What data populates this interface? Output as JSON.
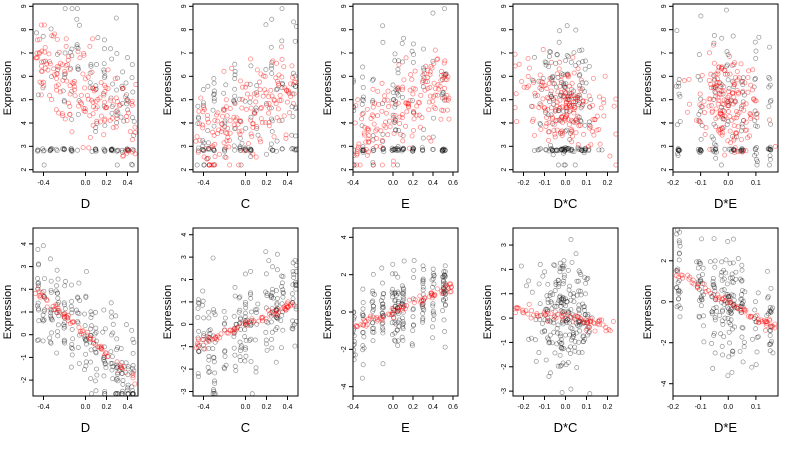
{
  "chart_data": [
    {
      "type": "scatter",
      "xlabel": "D",
      "ylabel": "Expression",
      "xlim": [
        -0.5,
        0.5
      ],
      "ylim": [
        1.9,
        9.1
      ],
      "xticks": [
        "-0.4",
        "0.0",
        "0.2",
        "0.4"
      ],
      "yticks": [
        "2",
        "3",
        "4",
        "5",
        "6",
        "7",
        "8",
        "9"
      ],
      "series": [
        {
          "color": "#000000",
          "pattern": "D-raw"
        },
        {
          "color": "#ff0000",
          "pattern": "D-raw-fit"
        }
      ]
    },
    {
      "type": "scatter",
      "xlabel": "C",
      "ylabel": "Expression",
      "xlim": [
        -0.5,
        0.5
      ],
      "ylim": [
        1.9,
        9.1
      ],
      "xticks": [
        "-0.4",
        "0.0",
        "0.2",
        "0.4"
      ],
      "yticks": [
        "2",
        "3",
        "4",
        "5",
        "6",
        "7",
        "8",
        "9"
      ],
      "series": [
        {
          "color": "#000000",
          "pattern": "C-raw"
        },
        {
          "color": "#ff0000",
          "pattern": "C-raw-fit"
        }
      ]
    },
    {
      "type": "scatter",
      "xlabel": "E",
      "ylabel": "Expression",
      "xlim": [
        -0.4,
        0.65
      ],
      "ylim": [
        1.9,
        9.1
      ],
      "xticks": [
        "-0.4",
        "0.0",
        "0.2",
        "0.4",
        "0.6"
      ],
      "yticks": [
        "2",
        "3",
        "4",
        "5",
        "6",
        "7",
        "8",
        "9"
      ],
      "series": [
        {
          "color": "#000000",
          "pattern": "E-raw"
        },
        {
          "color": "#ff0000",
          "pattern": "E-raw-fit"
        }
      ]
    },
    {
      "type": "scatter",
      "xlabel": "D*C",
      "ylabel": "Expression",
      "xlim": [
        -0.25,
        0.25
      ],
      "ylim": [
        1.9,
        9.1
      ],
      "xticks": [
        "-0.2",
        "-0.1",
        "0.0",
        "0.1",
        "0.2"
      ],
      "yticks": [
        "2",
        "3",
        "4",
        "5",
        "6",
        "7",
        "8",
        "9"
      ],
      "series": [
        {
          "color": "#000000",
          "pattern": "DC-raw"
        },
        {
          "color": "#ff0000",
          "pattern": "DC-raw-fit"
        }
      ]
    },
    {
      "type": "scatter",
      "xlabel": "D*E",
      "ylabel": "Expression",
      "xlim": [
        -0.2,
        0.18
      ],
      "ylim": [
        1.9,
        9.1
      ],
      "xticks": [
        "-0.2",
        "-0.1",
        "0.0",
        "0.1"
      ],
      "yticks": [
        "2",
        "3",
        "4",
        "5",
        "6",
        "7",
        "8",
        "9"
      ],
      "series": [
        {
          "color": "#000000",
          "pattern": "DE-raw"
        },
        {
          "color": "#ff0000",
          "pattern": "DE-raw-fit"
        }
      ]
    },
    {
      "type": "scatter",
      "xlabel": "D",
      "ylabel": "Expression",
      "xlim": [
        -0.5,
        0.5
      ],
      "ylim": [
        -2.7,
        4.7
      ],
      "xticks": [
        "-0.4",
        "0.0",
        "0.2",
        "0.4"
      ],
      "yticks": [
        "-2",
        "-1",
        "0",
        "1",
        "2",
        "3",
        "4"
      ],
      "series": [
        {
          "color": "#000000",
          "pattern": "D-partial"
        },
        {
          "color": "#ff0000",
          "slope": -4.2,
          "intercept": 0
        }
      ]
    },
    {
      "type": "scatter",
      "xlabel": "C",
      "ylabel": "Expression",
      "xlim": [
        -0.5,
        0.5
      ],
      "ylim": [
        -3.2,
        4.3
      ],
      "xticks": [
        "-0.4",
        "0.0",
        "0.2",
        "0.4"
      ],
      "yticks": [
        "-3",
        "-2",
        "-1",
        "0",
        "1",
        "2",
        "3",
        "4"
      ],
      "series": [
        {
          "color": "#000000",
          "pattern": "C-partial"
        },
        {
          "color": "#ff0000",
          "slope": 2.0,
          "intercept": 0
        }
      ]
    },
    {
      "type": "scatter",
      "xlabel": "E",
      "ylabel": "Expression",
      "xlim": [
        -0.4,
        0.65
      ],
      "ylim": [
        -4.5,
        4.5
      ],
      "xticks": [
        "-0.4",
        "0.0",
        "0.2",
        "0.4",
        "0.6"
      ],
      "yticks": [
        "-4",
        "-2",
        "0",
        "2",
        "4"
      ],
      "series": [
        {
          "color": "#000000",
          "pattern": "E-partial"
        },
        {
          "color": "#ff0000",
          "slope": 2.3,
          "intercept": 0
        }
      ]
    },
    {
      "type": "scatter",
      "xlabel": "D*C",
      "ylabel": "Expression",
      "xlim": [
        -0.25,
        0.25
      ],
      "ylim": [
        -3.2,
        3.7
      ],
      "xticks": [
        "-0.2",
        "-0.1",
        "0.0",
        "0.1",
        "0.2"
      ],
      "yticks": [
        "-3",
        "-2",
        "-1",
        "0",
        "1",
        "2",
        "3"
      ],
      "series": [
        {
          "color": "#000000",
          "pattern": "DC-partial"
        },
        {
          "color": "#ff0000",
          "slope": -1.5,
          "intercept": 0
        }
      ]
    },
    {
      "type": "scatter",
      "xlabel": "D*E",
      "ylabel": "Expression",
      "xlim": [
        -0.2,
        0.18
      ],
      "ylim": [
        -4.6,
        3.6
      ],
      "xticks": [
        "-0.2",
        "-0.1",
        "0.0",
        "0.1"
      ],
      "yticks": [
        "-4",
        "-2",
        "0",
        "2"
      ],
      "series": [
        {
          "color": "#000000",
          "pattern": "DE-partial"
        },
        {
          "color": "#ff0000",
          "slope": -7.5,
          "intercept": 0
        }
      ]
    }
  ]
}
